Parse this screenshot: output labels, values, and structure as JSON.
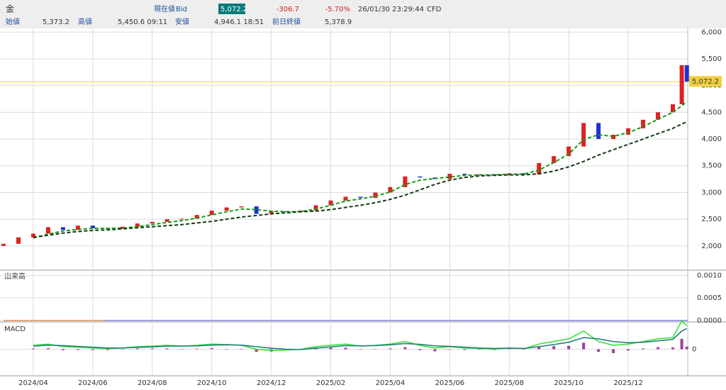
{
  "header": {
    "symbol": "金",
    "current_label": "現在値",
    "bid_label": "Bid",
    "bid": "5,072.2",
    "change": "-306.7",
    "change_pct": "-5.70%",
    "timestamp": "26/01/30 23:29:44",
    "product": "CFD",
    "open_label": "始値",
    "open": "5,373.2",
    "high_label": "高値",
    "high": "5,450.6 09:11",
    "low_label": "安値",
    "low": "4,946.1 18:51",
    "prev_close_label": "前日終値",
    "prev_close": "5,378.9"
  },
  "chart_data": {
    "type": "candlestick",
    "x": [
      0,
      0.5,
      1,
      1.5,
      2,
      2.5,
      3,
      3.5,
      4,
      4.5,
      5,
      5.5,
      6,
      6.5,
      7,
      7.5,
      8,
      8.5,
      9,
      9.5,
      10,
      10.5,
      11,
      11.5,
      12,
      12.5,
      13,
      13.5,
      14,
      14.5,
      15,
      15.5,
      16,
      16.5,
      17,
      17.5,
      18,
      18.5,
      19,
      19.5,
      20,
      20.5,
      21,
      21.5,
      22,
      22.5,
      22.8,
      22.97
    ],
    "open": [
      2000,
      2040,
      2160,
      2230,
      2350,
      2300,
      2380,
      2330,
      2320,
      2360,
      2420,
      2450,
      2500,
      2510,
      2580,
      2660,
      2720,
      2740,
      2600,
      2650,
      2640,
      2660,
      2760,
      2850,
      2920,
      2900,
      3000,
      3100,
      3300,
      3280,
      3250,
      3350,
      3330,
      3340,
      3320,
      3360,
      3340,
      3550,
      3680,
      3860,
      4300,
      4000,
      4080,
      4200,
      4360,
      4500,
      4650,
      5380
    ],
    "close": [
      2040,
      2160,
      2230,
      2350,
      2300,
      2380,
      2330,
      2320,
      2360,
      2420,
      2450,
      2500,
      2510,
      2580,
      2660,
      2720,
      2740,
      2600,
      2650,
      2640,
      2660,
      2760,
      2850,
      2920,
      2900,
      3000,
      3100,
      3300,
      3280,
      3250,
      3350,
      3330,
      3340,
      3320,
      3360,
      3340,
      3550,
      3680,
      3860,
      4300,
      4000,
      4080,
      4200,
      4360,
      4500,
      4650,
      5380,
      5072.2
    ],
    "up_color": "#e02020",
    "down_color": "#2030d0",
    "series": [
      {
        "color": "#1a9a1a",
        "dashed": true,
        "values": [
          null,
          null,
          2150,
          2220,
          2280,
          2310,
          2330,
          2330,
          2335,
          2360,
          2400,
          2440,
          2475,
          2520,
          2580,
          2640,
          2690,
          2680,
          2650,
          2640,
          2645,
          2690,
          2760,
          2840,
          2880,
          2930,
          3010,
          3150,
          3230,
          3260,
          3290,
          3320,
          3330,
          3330,
          3340,
          3345,
          3420,
          3560,
          3720,
          3990,
          4080,
          4050,
          4120,
          4230,
          4370,
          4500,
          4620,
          4700
        ]
      },
      {
        "color": "#143c14",
        "dashed": true,
        "values": [
          null,
          null,
          2160,
          2200,
          2240,
          2270,
          2290,
          2300,
          2320,
          2340,
          2360,
          2380,
          2400,
          2430,
          2460,
          2500,
          2540,
          2570,
          2600,
          2620,
          2640,
          2650,
          2680,
          2720,
          2760,
          2810,
          2870,
          2950,
          3050,
          3150,
          3230,
          3280,
          3310,
          3320,
          3330,
          3330,
          3350,
          3400,
          3480,
          3580,
          3700,
          3800,
          3900,
          4000,
          4100,
          4200,
          4280,
          4320
        ]
      }
    ],
    "last_price": {
      "value": 5072.2,
      "label": "5,072.2"
    },
    "last_color": "#f0d040",
    "xlim": [
      0,
      23
    ],
    "xticks": [
      {
        "value": 1,
        "label": "2024/04"
      },
      {
        "value": 3,
        "label": "2024/06"
      },
      {
        "value": 5,
        "label": "2024/08"
      },
      {
        "value": 7,
        "label": "2024/10"
      },
      {
        "value": 9,
        "label": "2024/12"
      },
      {
        "value": 11,
        "label": "2025/02"
      },
      {
        "value": 13,
        "label": "2025/04"
      },
      {
        "value": 15,
        "label": "2025/06"
      },
      {
        "value": 17,
        "label": "2025/08"
      },
      {
        "value": 19,
        "label": "2025/10"
      },
      {
        "value": 21,
        "label": "2025/12"
      }
    ],
    "ylim": [
      1560,
      6070
    ],
    "yticks": [
      {
        "value": 2000,
        "label": "2,000"
      },
      {
        "value": 2500,
        "label": "2,500"
      },
      {
        "value": 3000,
        "label": "3,000"
      },
      {
        "value": 3500,
        "label": "3,500"
      },
      {
        "value": 4000,
        "label": "4,000"
      },
      {
        "value": 4500,
        "label": "4,500"
      },
      {
        "value": 5000,
        "label": "5,000"
      },
      {
        "value": 5500,
        "label": "5,500"
      },
      {
        "value": 6000,
        "label": "6,000"
      }
    ],
    "grid": true,
    "volume": {
      "title": "出来高",
      "ylim": [
        0,
        0.0011
      ],
      "yticks": [
        {
          "value": 0.001,
          "label": "0.0010"
        },
        {
          "value": 0.0005,
          "label": "0.0005"
        },
        {
          "value": 0,
          "label": "0.0000"
        }
      ],
      "series": [
        {
          "color": "#8080e0",
          "x": [
            0,
            23
          ],
          "values": [
            0,
            0
          ]
        },
        {
          "color": "#f0a060",
          "x": [
            0,
            3.4
          ],
          "values": [
            0,
            0
          ]
        }
      ]
    },
    "macd": {
      "title": "MACD",
      "ylim": [
        -100,
        100
      ],
      "yticks": [
        0
      ],
      "series": [
        {
          "color": "#30e030",
          "values": [
            null,
            null,
            15,
            20,
            10,
            8,
            5,
            2,
            5,
            10,
            12,
            15,
            12,
            15,
            20,
            18,
            15,
            0,
            -5,
            -3,
            0,
            10,
            15,
            20,
            12,
            15,
            20,
            30,
            15,
            5,
            10,
            5,
            3,
            0,
            5,
            2,
            20,
            30,
            40,
            70,
            30,
            15,
            20,
            30,
            40,
            45,
            110,
            90
          ]
        },
        {
          "color": "#1f7a7a",
          "values": [
            null,
            null,
            12,
            16,
            14,
            11,
            8,
            5,
            5,
            7,
            9,
            12,
            12,
            13,
            16,
            17,
            16,
            10,
            4,
            0,
            -1,
            4,
            9,
            14,
            13,
            14,
            17,
            22,
            19,
            13,
            11,
            8,
            5,
            3,
            4,
            3,
            10,
            18,
            27,
            45,
            40,
            30,
            25,
            27,
            32,
            38,
            70,
            80
          ]
        }
      ],
      "histogram": {
        "color": "#a03ca0",
        "values": [
          null,
          null,
          3,
          4,
          -4,
          -3,
          -3,
          -3,
          0,
          3,
          3,
          3,
          0,
          2,
          4,
          1,
          -1,
          -10,
          -9,
          -3,
          1,
          6,
          6,
          6,
          -1,
          1,
          3,
          8,
          -4,
          -8,
          -1,
          -3,
          -2,
          -3,
          1,
          -1,
          10,
          12,
          13,
          25,
          -10,
          -15,
          -5,
          3,
          8,
          7,
          40,
          10
        ]
      }
    }
  }
}
